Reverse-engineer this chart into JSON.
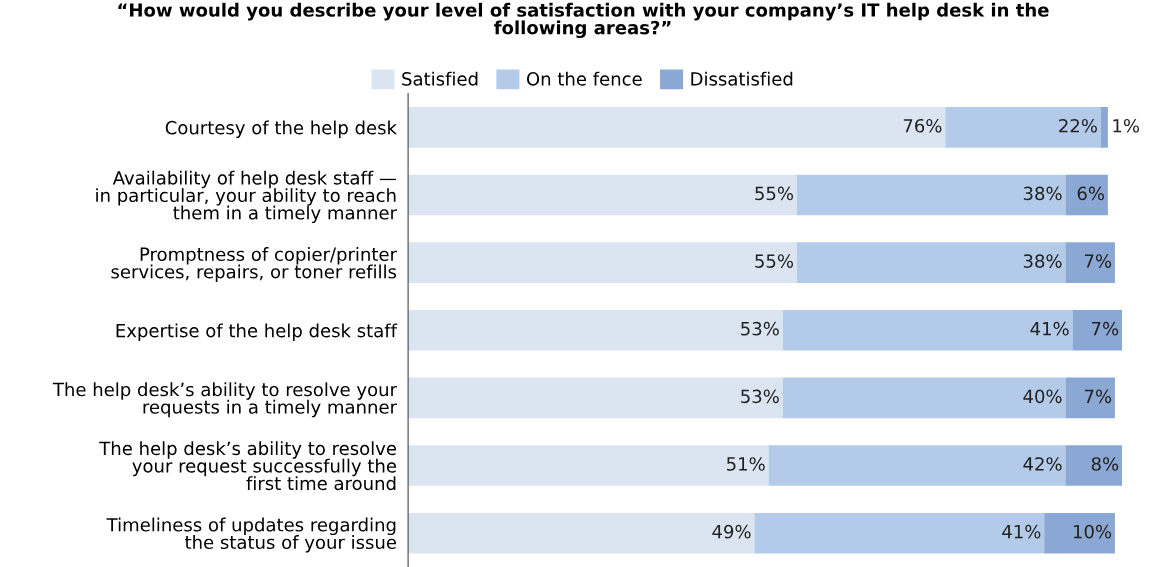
{
  "chart_data": {
    "type": "bar",
    "orientation": "horizontal",
    "stacked": true,
    "title": "“How would you describe your level of satisfaction with your company’s IT help desk in the\nfollowing areas?”",
    "categories": [
      "Courtesy of the help desk",
      "Availability of help desk staff —\nin particular, your ability to reach\nthem in a timely manner",
      "Promptness of copier/printer\nservices, repairs, or toner refills",
      "Expertise of the help desk staff",
      "The help desk’s ability to resolve your\nrequests in a timely manner",
      "The help desk’s ability to resolve\nyour request successfully the\nfirst time around",
      "Timeliness of updates regarding\nthe status of your issue"
    ],
    "series": [
      {
        "name": "Satisfied",
        "color": "#dae5f1",
        "values": [
          76,
          55,
          55,
          53,
          53,
          51,
          49
        ],
        "value_labels": [
          "76%",
          "55%",
          "55%",
          "53%",
          "53%",
          "51%",
          "49%"
        ]
      },
      {
        "name": "On the fence",
        "color": "#b3cbe9",
        "values": [
          22,
          38,
          38,
          41,
          40,
          42,
          41
        ],
        "value_labels": [
          "22%",
          "38%",
          "38%",
          "41%",
          "40%",
          "42%",
          "41%"
        ]
      },
      {
        "name": "Dissatisfied",
        "color": "#8aa8d3",
        "values": [
          1,
          6,
          7,
          7,
          7,
          8,
          10
        ],
        "value_labels": [
          "1%",
          "6%",
          "7%",
          "7%",
          "7%",
          "8%",
          "10%"
        ]
      }
    ],
    "legend": "top",
    "grid": false
  }
}
